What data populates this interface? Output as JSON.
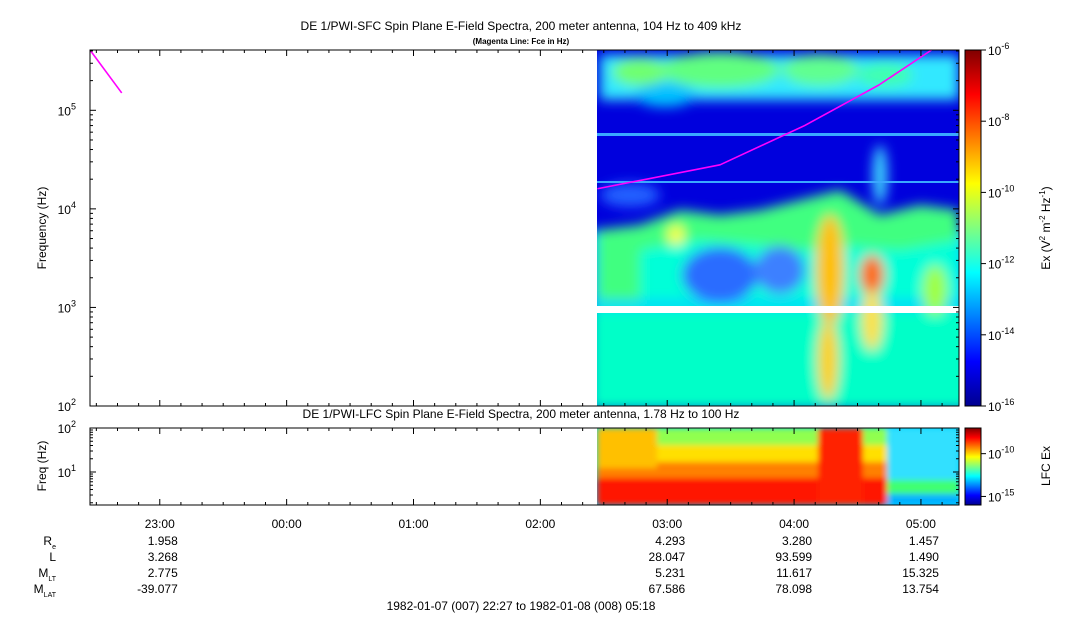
{
  "chart_data": [
    {
      "type": "heatmap",
      "title": "DE 1/PWI-SFC  Spin Plane E-Field Spectra, 200 meter antenna, 104 Hz to 409 kHz",
      "subtitle": "(Magenta Line: Fce in Hz)",
      "ylabel": "Frequency (Hz)",
      "yscale": "log",
      "ylim": [
        100,
        409000
      ],
      "yticks": [
        {
          "value": 100,
          "base": "10",
          "exp": "2"
        },
        {
          "value": 1000,
          "base": "10",
          "exp": "3"
        },
        {
          "value": 10000,
          "base": "10",
          "exp": "4"
        },
        {
          "value": 100000,
          "base": "10",
          "exp": "5"
        }
      ],
      "colorbar": {
        "label_main": "Ex (V",
        "label_sup1": "2",
        "label_mid": " m",
        "label_sup2": "-2",
        "label_mid2": " Hz",
        "label_sup3": "-1",
        "label_end": ")",
        "scale": "log",
        "range": [
          1e-16,
          1e-06
        ],
        "ticks": [
          {
            "value": 1e-06,
            "base": "10",
            "exp": "-6"
          },
          {
            "value": 1e-08,
            "base": "10",
            "exp": "-8"
          },
          {
            "value": 1e-10,
            "base": "10",
            "exp": "-10"
          },
          {
            "value": 1e-12,
            "base": "10",
            "exp": "-12"
          },
          {
            "value": 1e-14,
            "base": "10",
            "exp": "-14"
          },
          {
            "value": 1e-16,
            "base": "10",
            "exp": "-16"
          }
        ]
      },
      "data_start": "02:25",
      "gap_band_hz": [
        880,
        1020
      ],
      "overlay_line": {
        "name": "Fce",
        "color": "#ff00ff",
        "segments": [
          [
            [
              "22:27",
              409000
            ],
            [
              "22:42",
              150000
            ]
          ],
          [
            [
              "02:27",
              16000
            ],
            [
              "03:25",
              28000
            ],
            [
              "04:05",
              70000
            ],
            [
              "04:40",
              180000
            ],
            [
              "05:05",
              409000
            ]
          ]
        ]
      }
    },
    {
      "type": "heatmap",
      "title": "DE 1/PWI-LFC  Spin Plane E-Field Spectra, 200 meter antenna, 1.78 Hz to 100 Hz",
      "ylabel": "Freq (Hz)",
      "yscale": "log",
      "ylim": [
        1.78,
        100
      ],
      "yticks": [
        {
          "value": 10,
          "base": "10",
          "exp": "1"
        },
        {
          "value": 100,
          "base": "10",
          "exp": "2"
        }
      ],
      "colorbar": {
        "label": "LFC Ex",
        "scale": "log",
        "range": [
          1e-16,
          1e-07
        ],
        "ticks": [
          {
            "value": 1e-10,
            "base": "10",
            "exp": "-10"
          },
          {
            "value": 1e-15,
            "base": "10",
            "exp": "-15"
          }
        ]
      },
      "data_start": "02:25"
    }
  ],
  "time_axis": {
    "start": "22:27",
    "end": "05:18",
    "tick_labels": [
      "23:00",
      "00:00",
      "01:00",
      "02:00",
      "03:00",
      "04:00",
      "05:00"
    ],
    "range_label": "1982-01-07 (007) 22:27 to 1982-01-08 (008) 05:18"
  },
  "ephemeris": {
    "rows": [
      {
        "name": "R",
        "sub": "e",
        "values": [
          "1.958",
          "",
          "",
          "",
          "4.293",
          "3.280",
          "1.457"
        ]
      },
      {
        "name": "L",
        "sub": "",
        "values": [
          "3.268",
          "",
          "",
          "",
          "28.047",
          "93.599",
          "1.490"
        ]
      },
      {
        "name": "M",
        "sub": "LT",
        "values": [
          "2.775",
          "",
          "",
          "",
          "5.231",
          "11.617",
          "15.325"
        ]
      },
      {
        "name": "M",
        "sub": "LAT",
        "values": [
          "-39.077",
          "",
          "",
          "",
          "67.586",
          "78.098",
          "13.754"
        ]
      }
    ]
  }
}
